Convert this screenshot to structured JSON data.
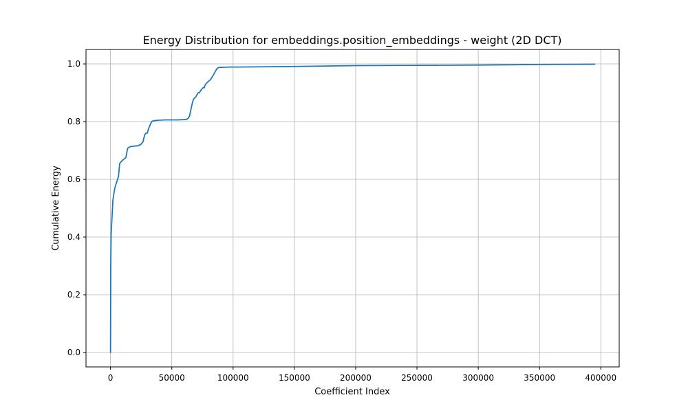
{
  "chart_data": {
    "type": "line",
    "title": "Energy Distribution for embeddings.position_embeddings - weight (2D DCT)",
    "xlabel": "Coefficient Index",
    "ylabel": "Cumulative Energy",
    "xlim": [
      -20000,
      415000
    ],
    "ylim": [
      -0.05,
      1.05
    ],
    "x_ticks": [
      0,
      50000,
      100000,
      150000,
      200000,
      250000,
      300000,
      350000,
      400000
    ],
    "x_tick_labels": [
      "0",
      "50000",
      "100000",
      "150000",
      "200000",
      "250000",
      "300000",
      "350000",
      "400000"
    ],
    "y_ticks": [
      0.0,
      0.2,
      0.4,
      0.6,
      0.8,
      1.0
    ],
    "y_tick_labels": [
      "0.0",
      "0.2",
      "0.4",
      "0.6",
      "0.8",
      "1.0"
    ],
    "grid": true,
    "series": [
      {
        "color": "#1f77b4",
        "x": [
          0,
          200,
          500,
          1000,
          2000,
          3500,
          5000,
          6500,
          7500,
          8500,
          9500,
          11000,
          12500,
          14000,
          16000,
          19000,
          22000,
          24500,
          25500,
          26500,
          27000,
          28000,
          29000,
          30000,
          31000,
          32000,
          33500,
          35000,
          37500,
          40000,
          45000,
          50000,
          55000,
          60000,
          62000,
          63500,
          64500,
          65500,
          66500,
          67500,
          68500,
          69500,
          70500,
          71500,
          72500,
          73500,
          74500,
          75500,
          76500,
          77000,
          78000,
          79000,
          80000,
          81000,
          82000,
          83000,
          84000,
          85000,
          86000,
          87000,
          88000,
          89000,
          90000,
          92000,
          95000,
          100000,
          150000,
          200000,
          250000,
          300000,
          350000,
          395000
        ],
        "y": [
          0.0,
          0.3,
          0.41,
          0.45,
          0.53,
          0.57,
          0.59,
          0.61,
          0.655,
          0.66,
          0.665,
          0.67,
          0.675,
          0.708,
          0.713,
          0.715,
          0.716,
          0.72,
          0.725,
          0.73,
          0.74,
          0.755,
          0.76,
          0.76,
          0.775,
          0.785,
          0.8,
          0.803,
          0.804,
          0.805,
          0.806,
          0.806,
          0.806,
          0.807,
          0.808,
          0.812,
          0.82,
          0.84,
          0.86,
          0.875,
          0.882,
          0.885,
          0.893,
          0.9,
          0.9,
          0.907,
          0.913,
          0.918,
          0.917,
          0.925,
          0.932,
          0.936,
          0.94,
          0.943,
          0.948,
          0.955,
          0.962,
          0.97,
          0.978,
          0.984,
          0.987,
          0.988,
          0.988,
          0.988,
          0.989,
          0.989,
          0.991,
          0.994,
          0.995,
          0.996,
          0.998,
          0.999
        ]
      }
    ]
  }
}
